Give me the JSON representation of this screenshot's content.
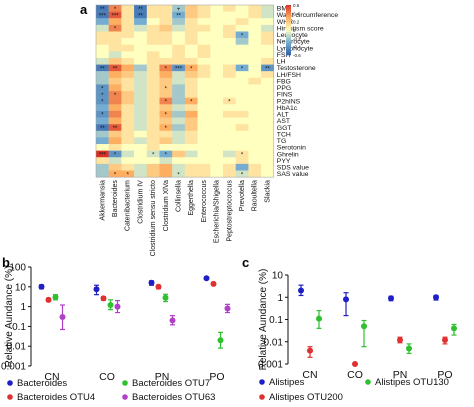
{
  "panels": {
    "a": "a",
    "b": "b",
    "c": "c"
  },
  "chart_data": [
    {
      "type": "heatmap",
      "panel": "a",
      "rows": [
        "BMI",
        "Waist circumference",
        "WHR",
        "Hirsutism score",
        "Leucocyte",
        "Neutrocyte",
        "Lymphocyte",
        "FSH",
        "LH",
        "Testosterone",
        "LH/FSH",
        "FBG",
        "PPG",
        "FINS",
        "P2hINS",
        "HbA1c",
        "ALT",
        "AST",
        "GGT",
        "TCH",
        "TG",
        "Serotonin",
        "Ghrelin",
        "PYY",
        "SDS value",
        "SAS value"
      ],
      "columns": [
        "Akkermansia",
        "Bacteroides",
        "Catenibacterium",
        "Clostridium IV",
        "Clostridium sensu stricto",
        "Clostridium XlVa",
        "Collinsella",
        "Eggerthella",
        "Enterococcus",
        "Escherichia/Shigella",
        "Peptostreptococcus",
        "Prevotella",
        "Raoultella",
        "Slackia"
      ],
      "colorbar": {
        "ticks": [
          "0.6",
          "0.4",
          "0.2",
          "0",
          "-0.2",
          "-0.4",
          "-0.6"
        ],
        "range": [
          -0.6,
          0.6
        ]
      },
      "values": [
        [
          -0.5,
          0.4,
          0.1,
          -0.5,
          0.1,
          0.1,
          -0.2,
          0.2,
          0.1,
          0.0,
          0.1,
          0.0,
          0.1,
          -0.1
        ],
        [
          -0.5,
          0.5,
          0.1,
          -0.5,
          0.1,
          0.1,
          -0.3,
          0.2,
          0.1,
          0.0,
          0.0,
          0.0,
          0.1,
          -0.1
        ],
        [
          -0.3,
          0.3,
          0.1,
          -0.3,
          0.0,
          0.1,
          -0.2,
          0.1,
          0.0,
          0.0,
          0.0,
          0.1,
          0.0,
          0.0
        ],
        [
          -0.1,
          0.4,
          0.1,
          -0.1,
          0.1,
          0.2,
          -0.1,
          0.1,
          0.1,
          0.0,
          0.1,
          0.0,
          0.0,
          -0.1
        ],
        [
          0.1,
          0.1,
          0.1,
          0.0,
          0.1,
          0.1,
          0.0,
          0.1,
          0.0,
          0.0,
          0.1,
          -0.3,
          0.0,
          0.1
        ],
        [
          0.1,
          0.1,
          0.0,
          0.0,
          0.1,
          0.1,
          0.0,
          0.1,
          0.0,
          0.0,
          0.0,
          -0.2,
          0.0,
          0.1
        ],
        [
          0.0,
          0.1,
          0.1,
          0.0,
          0.0,
          0.0,
          0.1,
          0.0,
          0.1,
          0.0,
          0.0,
          0.0,
          0.0,
          0.0
        ],
        [
          0.0,
          -0.1,
          0.0,
          0.0,
          0.1,
          0.0,
          0.1,
          0.0,
          0.1,
          0.0,
          0.0,
          0.0,
          0.0,
          0.0
        ],
        [
          -0.1,
          0.2,
          0.1,
          0.0,
          0.1,
          0.1,
          0.1,
          0.1,
          0.0,
          0.0,
          0.0,
          0.0,
          0.0,
          0.1
        ],
        [
          -0.5,
          0.5,
          0.3,
          -0.2,
          0.1,
          0.4,
          -0.4,
          0.3,
          0.1,
          0.0,
          0.1,
          -0.3,
          0.0,
          -0.4
        ],
        [
          -0.2,
          0.3,
          0.2,
          -0.1,
          0.1,
          0.3,
          -0.1,
          0.2,
          0.1,
          0.0,
          0.1,
          0.0,
          0.0,
          0.1
        ],
        [
          -0.2,
          0.2,
          0.1,
          -0.1,
          0.1,
          0.2,
          -0.1,
          0.1,
          0.0,
          0.0,
          0.0,
          0.0,
          0.1,
          0.0
        ],
        [
          -0.4,
          0.3,
          0.1,
          -0.1,
          0.1,
          0.2,
          -0.2,
          0.1,
          0.0,
          0.0,
          0.0,
          0.0,
          0.0,
          0.0
        ],
        [
          -0.4,
          0.4,
          0.2,
          -0.1,
          0.1,
          0.2,
          -0.2,
          0.1,
          0.0,
          0.0,
          0.0,
          0.0,
          0.0,
          0.0
        ],
        [
          -0.4,
          0.4,
          0.2,
          -0.1,
          0.1,
          0.4,
          -0.2,
          0.3,
          0.0,
          0.0,
          0.1,
          0.0,
          0.0,
          0.0
        ],
        [
          -0.3,
          0.3,
          0.1,
          -0.1,
          0.1,
          0.2,
          -0.1,
          0.1,
          0.0,
          0.0,
          0.0,
          0.0,
          0.0,
          0.0
        ],
        [
          -0.4,
          0.4,
          0.1,
          -0.1,
          0.1,
          0.3,
          -0.2,
          0.3,
          0.0,
          0.0,
          0.1,
          0.1,
          0.0,
          0.0
        ],
        [
          -0.3,
          0.3,
          0.1,
          -0.1,
          0.1,
          0.2,
          -0.1,
          0.2,
          0.0,
          0.0,
          0.0,
          0.0,
          0.0,
          0.0
        ],
        [
          -0.5,
          0.5,
          0.1,
          -0.1,
          0.1,
          0.3,
          -0.2,
          0.2,
          0.0,
          0.0,
          0.0,
          0.1,
          0.0,
          0.0
        ],
        [
          -0.2,
          0.2,
          0.1,
          0.0,
          0.1,
          0.1,
          -0.1,
          0.1,
          0.0,
          0.0,
          0.0,
          0.0,
          0.0,
          0.0
        ],
        [
          -0.3,
          0.3,
          0.1,
          -0.1,
          0.1,
          0.2,
          -0.1,
          0.1,
          0.0,
          0.0,
          0.0,
          0.0,
          0.0,
          0.0
        ],
        [
          0.0,
          0.1,
          0.0,
          0.0,
          0.1,
          0.0,
          0.0,
          0.0,
          0.0,
          0.0,
          0.0,
          0.0,
          0.0,
          0.0
        ],
        [
          0.6,
          -0.4,
          -0.1,
          0.0,
          -0.1,
          -0.3,
          0.2,
          -0.1,
          0.0,
          0.0,
          -0.1,
          0.1,
          0.0,
          0.0
        ],
        [
          0.1,
          -0.1,
          0.0,
          0.0,
          0.0,
          -0.1,
          0.0,
          0.0,
          0.0,
          0.0,
          0.0,
          0.1,
          0.0,
          0.0
        ],
        [
          -0.2,
          0.2,
          0.1,
          -0.1,
          0.2,
          0.3,
          -0.1,
          0.1,
          0.1,
          0.0,
          0.1,
          -0.3,
          0.1,
          0.0
        ],
        [
          -0.2,
          0.3,
          0.3,
          -0.1,
          0.2,
          0.3,
          -0.1,
          0.1,
          0.1,
          0.0,
          0.1,
          -0.1,
          0.1,
          0.0
        ]
      ],
      "annotations": [
        {
          "row": 0,
          "col": 0,
          "text": "**"
        },
        {
          "row": 0,
          "col": 1,
          "text": "*"
        },
        {
          "row": 0,
          "col": 3,
          "text": "**"
        },
        {
          "row": 0,
          "col": 6,
          "text": "+"
        },
        {
          "row": 1,
          "col": 0,
          "text": "***"
        },
        {
          "row": 1,
          "col": 1,
          "text": "***"
        },
        {
          "row": 1,
          "col": 3,
          "text": "**"
        },
        {
          "row": 1,
          "col": 6,
          "text": "**"
        },
        {
          "row": 3,
          "col": 1,
          "text": "*"
        },
        {
          "row": 4,
          "col": 11,
          "text": "*"
        },
        {
          "row": 9,
          "col": 0,
          "text": "**"
        },
        {
          "row": 9,
          "col": 1,
          "text": "**"
        },
        {
          "row": 9,
          "col": 5,
          "text": "*"
        },
        {
          "row": 9,
          "col": 6,
          "text": "***"
        },
        {
          "row": 9,
          "col": 7,
          "text": "*"
        },
        {
          "row": 9,
          "col": 11,
          "text": "*"
        },
        {
          "row": 9,
          "col": 13,
          "text": "**"
        },
        {
          "row": 12,
          "col": 0,
          "text": "*"
        },
        {
          "row": 12,
          "col": 5,
          "text": "*"
        },
        {
          "row": 13,
          "col": 0,
          "text": "*"
        },
        {
          "row": 13,
          "col": 1,
          "text": "*"
        },
        {
          "row": 14,
          "col": 0,
          "text": "*"
        },
        {
          "row": 14,
          "col": 5,
          "text": "*"
        },
        {
          "row": 14,
          "col": 7,
          "text": "*"
        },
        {
          "row": 14,
          "col": 10,
          "text": "*"
        },
        {
          "row": 16,
          "col": 0,
          "text": "*"
        },
        {
          "row": 16,
          "col": 5,
          "text": "*"
        },
        {
          "row": 18,
          "col": 0,
          "text": "**"
        },
        {
          "row": 18,
          "col": 1,
          "text": "**"
        },
        {
          "row": 18,
          "col": 5,
          "text": "*"
        },
        {
          "row": 22,
          "col": 0,
          "text": "***"
        },
        {
          "row": 22,
          "col": 1,
          "text": "*"
        },
        {
          "row": 22,
          "col": 4,
          "text": "*"
        },
        {
          "row": 22,
          "col": 5,
          "text": "*"
        },
        {
          "row": 22,
          "col": 11,
          "text": "*"
        },
        {
          "row": 25,
          "col": 1,
          "text": "*"
        },
        {
          "row": 25,
          "col": 2,
          "text": "*"
        },
        {
          "row": 25,
          "col": 6,
          "text": "*"
        },
        {
          "row": 25,
          "col": 11,
          "text": "*"
        }
      ]
    },
    {
      "type": "scatter",
      "panel": "b",
      "ylabel": "Relative Aundance (%)",
      "yscale": "log",
      "ylim": [
        0.001,
        100
      ],
      "yticks": [
        "100",
        "10",
        "1",
        "0.1",
        "0.01",
        "0.001"
      ],
      "categories": [
        "CN",
        "CO",
        "PN",
        "PO"
      ],
      "series": [
        {
          "name": "Bacteroides",
          "color": "#1f1fc8",
          "values": [
            10,
            7.5,
            16,
            27
          ],
          "err_low": [
            8,
            4,
            12,
            26
          ],
          "err_high": [
            12.5,
            12,
            20,
            29
          ]
        },
        {
          "name": "Bacteroides OTU4",
          "color": "#e03030",
          "values": [
            2.2,
            2.6,
            10,
            14
          ],
          "err_low": [
            1.8,
            2.1,
            8,
            12
          ],
          "err_high": [
            2.7,
            3.2,
            12,
            16
          ]
        },
        {
          "name": "Bacteroides OTU7",
          "color": "#2ec02e",
          "values": [
            3,
            1.2,
            2.8,
            0.02
          ],
          "err_low": [
            2.2,
            0.7,
            1.8,
            0.008
          ],
          "err_high": [
            4,
            2.2,
            4.2,
            0.05
          ]
        },
        {
          "name": "Bacteroides OTU63",
          "color": "#b040c8",
          "values": [
            0.3,
            1.0,
            0.2,
            0.8
          ],
          "err_low": [
            0.07,
            0.5,
            0.12,
            0.5
          ],
          "err_high": [
            1.2,
            2.0,
            0.35,
            1.3
          ]
        }
      ]
    },
    {
      "type": "scatter",
      "panel": "c",
      "ylabel": "Relative Aundance (%)",
      "yscale": "log",
      "ylim": [
        0.001,
        10
      ],
      "yticks": [
        "10",
        "1",
        "0.1",
        "0.01",
        "0.001"
      ],
      "categories": [
        "CN",
        "CO",
        "PN",
        "PO"
      ],
      "series": [
        {
          "name": "Alistipes",
          "color": "#1f1fc8",
          "values": [
            2,
            0.8,
            0.9,
            1.0
          ],
          "err_low": [
            1.2,
            0.15,
            0.7,
            0.75
          ],
          "err_high": [
            3.5,
            1.6,
            1.1,
            1.2
          ]
        },
        {
          "name": "Alistipes OTU200",
          "color": "#e03030",
          "values": [
            0.004,
            0.001,
            0.012,
            0.012
          ],
          "err_low": [
            0.002,
            0.001,
            0.009,
            0.008
          ],
          "err_high": [
            0.006,
            0.001,
            0.016,
            0.016
          ]
        },
        {
          "name": "Alistipes OTU130",
          "color": "#2ec02e",
          "values": [
            0.11,
            0.05,
            0.005,
            0.04
          ],
          "err_low": [
            0.04,
            0.006,
            0.003,
            0.02
          ],
          "err_high": [
            0.25,
            0.09,
            0.008,
            0.06
          ]
        }
      ]
    }
  ]
}
